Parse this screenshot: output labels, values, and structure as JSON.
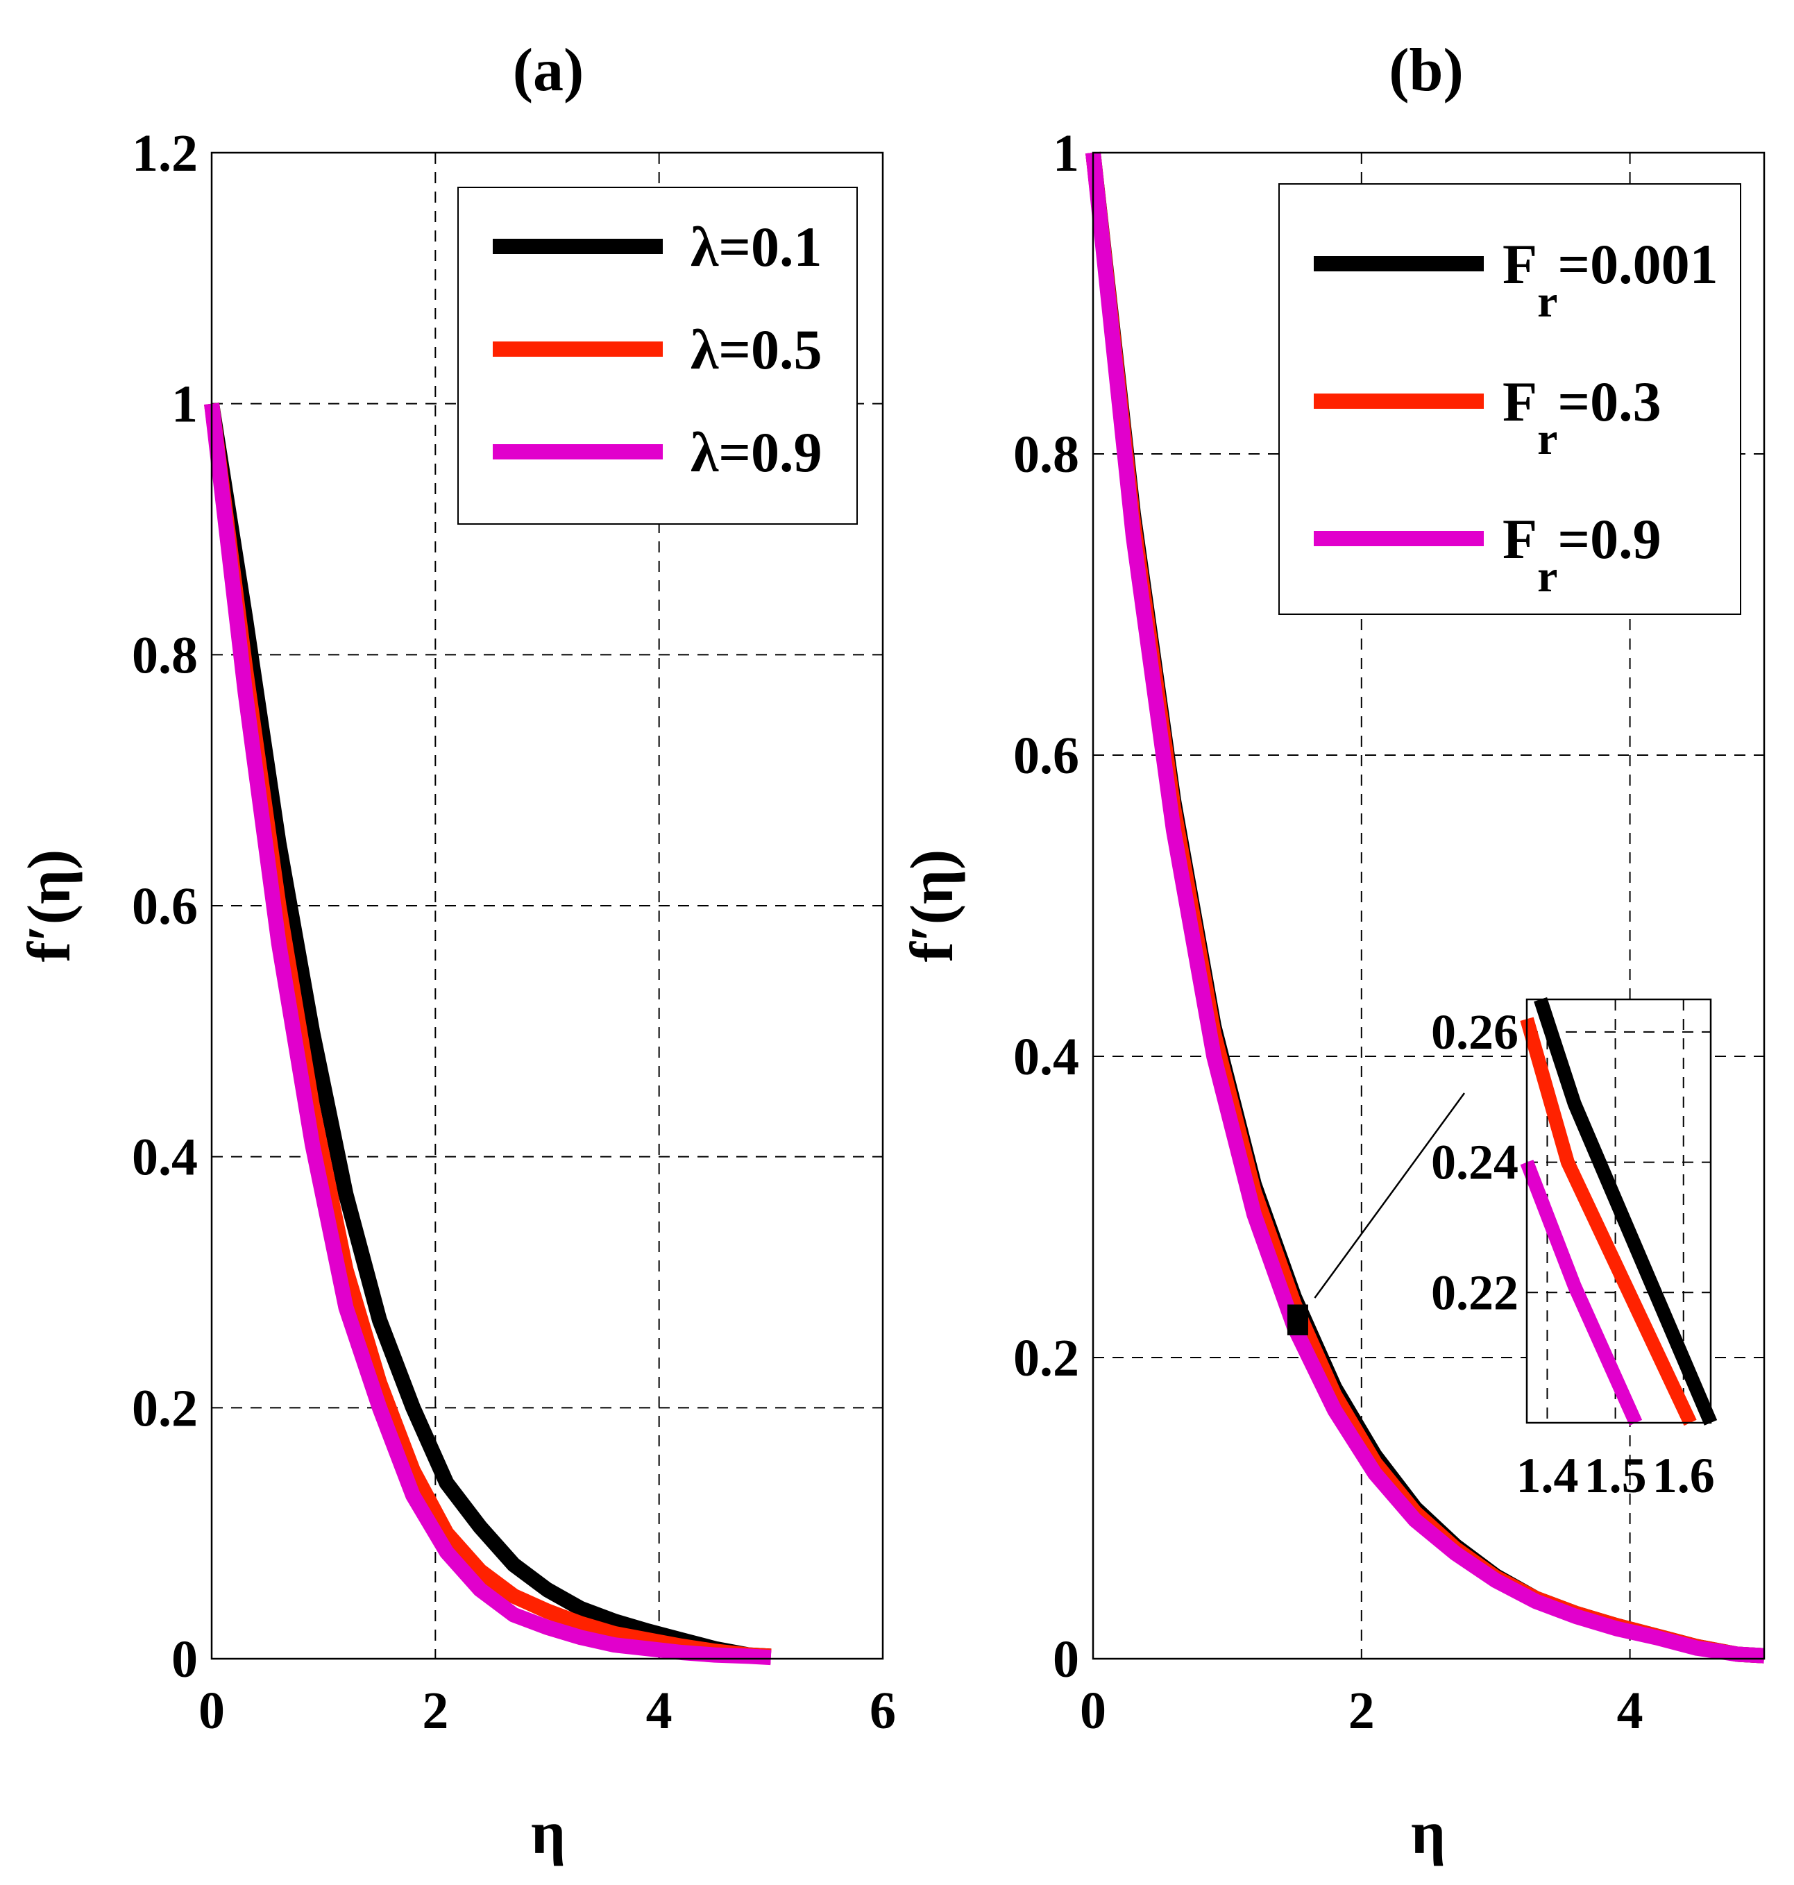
{
  "chart_data": [
    {
      "type": "line",
      "panel": "a",
      "title": "(a)",
      "xlabel": "η",
      "ylabel": "f′(η)",
      "xlim": [
        0,
        6
      ],
      "ylim": [
        0,
        1.2
      ],
      "xticks": [
        0,
        2,
        4,
        6
      ],
      "xtick_labels": [
        "0",
        "2",
        "4",
        "6"
      ],
      "yticks": [
        0,
        0.2,
        0.4,
        0.6,
        0.8,
        1,
        1.2
      ],
      "ytick_labels": [
        "0",
        "0.2",
        "0.4",
        "0.6",
        "0.8",
        "1",
        "1.2"
      ],
      "grid": true,
      "legend_position": "top-right",
      "x": [
        0,
        0.3,
        0.6,
        0.9,
        1.2,
        1.5,
        1.8,
        2.1,
        2.4,
        2.7,
        3.0,
        3.3,
        3.6,
        3.9,
        4.2,
        4.5,
        4.8,
        5.0
      ],
      "series": [
        {
          "name": "λ=0.1",
          "color": "#000000",
          "values": [
            1.0,
            0.83,
            0.65,
            0.5,
            0.37,
            0.27,
            0.2,
            0.14,
            0.105,
            0.075,
            0.055,
            0.04,
            0.03,
            0.022,
            0.015,
            0.008,
            0.003,
            0.002
          ]
        },
        {
          "name": "λ=0.5",
          "color": "#ff2200",
          "values": [
            1.0,
            0.79,
            0.6,
            0.44,
            0.31,
            0.22,
            0.15,
            0.1,
            0.07,
            0.05,
            0.038,
            0.028,
            0.02,
            0.015,
            0.01,
            0.006,
            0.003,
            0.002
          ]
        },
        {
          "name": "λ=0.9",
          "color": "#e100cc",
          "values": [
            1.0,
            0.77,
            0.57,
            0.41,
            0.28,
            0.2,
            0.13,
            0.085,
            0.055,
            0.035,
            0.025,
            0.017,
            0.011,
            0.008,
            0.005,
            0.003,
            0.002,
            0.001
          ]
        }
      ]
    },
    {
      "type": "line",
      "panel": "b",
      "title": "(b)",
      "xlabel": "η",
      "ylabel": "f′(η)",
      "xlim": [
        0,
        5
      ],
      "ylim": [
        0,
        1
      ],
      "xticks": [
        0,
        2,
        4
      ],
      "xtick_labels": [
        "0",
        "2",
        "4"
      ],
      "yticks": [
        0,
        0.2,
        0.4,
        0.6,
        0.8,
        1
      ],
      "ytick_labels": [
        "0",
        "0.2",
        "0.4",
        "0.6",
        "0.8",
        "1"
      ],
      "grid": true,
      "legend_position": "top-right",
      "x": [
        0,
        0.3,
        0.6,
        0.9,
        1.2,
        1.5,
        1.8,
        2.1,
        2.4,
        2.7,
        3.0,
        3.3,
        3.6,
        3.9,
        4.2,
        4.5,
        4.8,
        5.0
      ],
      "series": [
        {
          "name": "F",
          "name_sub": "r",
          "name_suffix": "=0.001",
          "color": "#000000",
          "values": [
            1.0,
            0.76,
            0.57,
            0.42,
            0.315,
            0.24,
            0.18,
            0.135,
            0.1,
            0.075,
            0.055,
            0.04,
            0.03,
            0.022,
            0.015,
            0.008,
            0.003,
            0.002
          ]
        },
        {
          "name": "F",
          "name_sub": "r",
          "name_suffix": "=0.3",
          "color": "#ff2200",
          "values": [
            1.0,
            0.755,
            0.565,
            0.415,
            0.31,
            0.235,
            0.175,
            0.13,
            0.097,
            0.073,
            0.054,
            0.04,
            0.03,
            0.022,
            0.015,
            0.008,
            0.003,
            0.002
          ]
        },
        {
          "name": "F",
          "name_sub": "r",
          "name_suffix": "=0.9",
          "color": "#e100cc",
          "values": [
            1.0,
            0.745,
            0.55,
            0.4,
            0.295,
            0.22,
            0.165,
            0.123,
            0.092,
            0.07,
            0.052,
            0.038,
            0.028,
            0.02,
            0.014,
            0.007,
            0.003,
            0.002
          ]
        }
      ],
      "inset": {
        "xlim": [
          1.37,
          1.64
        ],
        "ylim": [
          0.2,
          0.265
        ],
        "xticks": [
          1.4,
          1.5,
          1.6
        ],
        "xtick_labels": [
          "1.4",
          "1.5",
          "1.6"
        ],
        "yticks": [
          0.22,
          0.24,
          0.26
        ],
        "ytick_labels": [
          "0.22",
          "0.24",
          "0.26"
        ],
        "grid": true,
        "zoom_region": {
          "x": [
            1.45,
            1.6
          ],
          "y": [
            0.215,
            0.235
          ]
        },
        "series": [
          {
            "name": "F_r=0.001",
            "color": "#000000",
            "points": [
              [
                1.39,
                0.265
              ],
              [
                1.44,
                0.249
              ],
              [
                1.64,
                0.2
              ]
            ]
          },
          {
            "name": "F_r=0.3",
            "color": "#ff2200",
            "points": [
              [
                1.37,
                0.262
              ],
              [
                1.43,
                0.24
              ],
              [
                1.61,
                0.2
              ]
            ]
          },
          {
            "name": "F_r=0.9",
            "color": "#e100cc",
            "points": [
              [
                1.37,
                0.24
              ],
              [
                1.44,
                0.221
              ],
              [
                1.53,
                0.2
              ]
            ]
          }
        ]
      }
    }
  ]
}
